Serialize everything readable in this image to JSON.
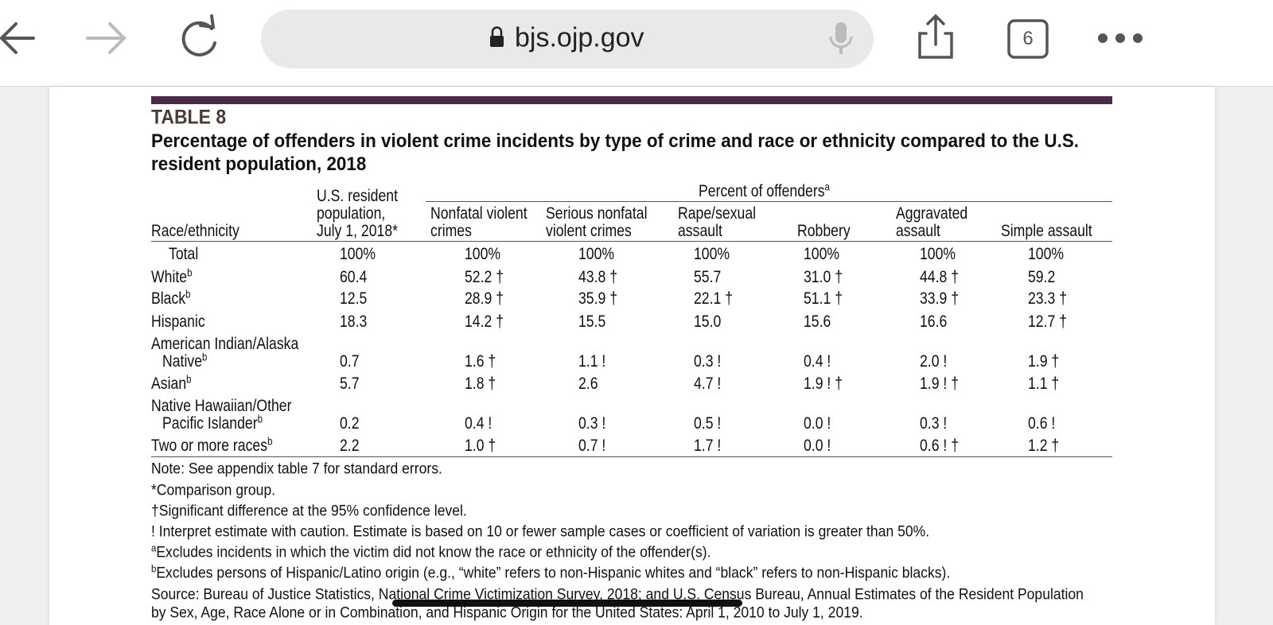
{
  "browser": {
    "url": "bjs.ojp.gov",
    "tab_count": "6"
  },
  "table_label": "TABLE 8",
  "table_title": "Percentage of offenders in violent crime incidents by type of crime and race or ethnicity compared to the U.S. resident population, 2018",
  "table": {
    "group_header": {
      "text": "Percent of offenders",
      "sup": "a"
    },
    "columns": [
      {
        "lines": [
          "Race/ethnicity"
        ]
      },
      {
        "lines": [
          "U.S. resident",
          "population,",
          "July 1, 2018*"
        ]
      },
      {
        "lines": [
          "Nonfatal violent",
          "crimes"
        ]
      },
      {
        "lines": [
          "Serious nonfatal",
          "violent crimes"
        ]
      },
      {
        "lines": [
          "Rape/sexual",
          "assault"
        ]
      },
      {
        "lines": [
          "Robbery"
        ]
      },
      {
        "lines": [
          "Aggravated",
          "assault"
        ]
      },
      {
        "lines": [
          "Simple assault"
        ]
      }
    ],
    "rows": [
      {
        "lines": [
          "Total"
        ],
        "cells": [
          "100%",
          "100%",
          "100%",
          "100%",
          "100%",
          "100%",
          "100%"
        ]
      },
      {
        "lines": [
          "White"
        ],
        "sup": "b",
        "cells": [
          "60.4",
          "52.2 †",
          "43.8 †",
          "55.7",
          "31.0 †",
          "44.8 †",
          "59.2"
        ]
      },
      {
        "lines": [
          "Black"
        ],
        "sup": "b",
        "cells": [
          "12.5",
          "28.9 †",
          "35.9 †",
          "22.1 †",
          "51.1 †",
          "33.9 †",
          "23.3 †"
        ]
      },
      {
        "lines": [
          "Hispanic"
        ],
        "cells": [
          "18.3",
          "14.2 †",
          "15.5",
          "15.0",
          "15.6",
          "16.6",
          "12.7 †"
        ]
      },
      {
        "lines": [
          "American Indian/Alaska",
          "Native"
        ],
        "sup": "b",
        "cells": [
          "0.7",
          "1.6 †",
          "1.1 !",
          "0.3 !",
          "0.4 !",
          "2.0 !",
          "1.9 †"
        ]
      },
      {
        "lines": [
          "Asian"
        ],
        "sup": "b",
        "cells": [
          "5.7",
          "1.8 †",
          "2.6",
          "4.7 !",
          "1.9 ! †",
          "1.9 ! †",
          "1.1 †"
        ]
      },
      {
        "lines": [
          "Native Hawaiian/Other",
          "Pacific Islander"
        ],
        "sup": "b",
        "cells": [
          "0.2",
          "0.4 !",
          "0.3 !",
          "0.5 !",
          "0.0 !",
          "0.3 !",
          "0.6 !"
        ]
      },
      {
        "lines": [
          "Two or more races"
        ],
        "sup": "b",
        "cells": [
          "2.2",
          "1.0 †",
          "0.7 !",
          "1.7 !",
          "0.0 !",
          "0.6 ! †",
          "1.2 †"
        ]
      }
    ]
  },
  "notes": [
    {
      "text": "Note: See appendix table 7 for standard errors."
    },
    {
      "text": "*Comparison group."
    },
    {
      "text": "†Significant difference at the 95% confidence level."
    },
    {
      "text": "! Interpret estimate with caution. Estimate is based on 10 or fewer sample cases or coefficient of variation is greater than 50%."
    },
    {
      "sup": "a",
      "text": "Excludes incidents in which the victim did not know the race or ethnicity of the offender(s)."
    },
    {
      "sup": "b",
      "text": "Excludes persons of Hispanic/Latino origin (e.g., “white” refers to non-Hispanic whites and “black” refers to non-Hispanic blacks)."
    },
    {
      "text": "Source: Bureau of Justice Statistics, National Crime Victimization Survey, 2018; and U.S. Census Bureau, Annual Estimates of the Resident Population"
    },
    {
      "text": "by Sex, Age, Race Alone or in Combination, and Hispanic Origin for the United States: April 1, 2010 to July 1, 2019."
    }
  ]
}
